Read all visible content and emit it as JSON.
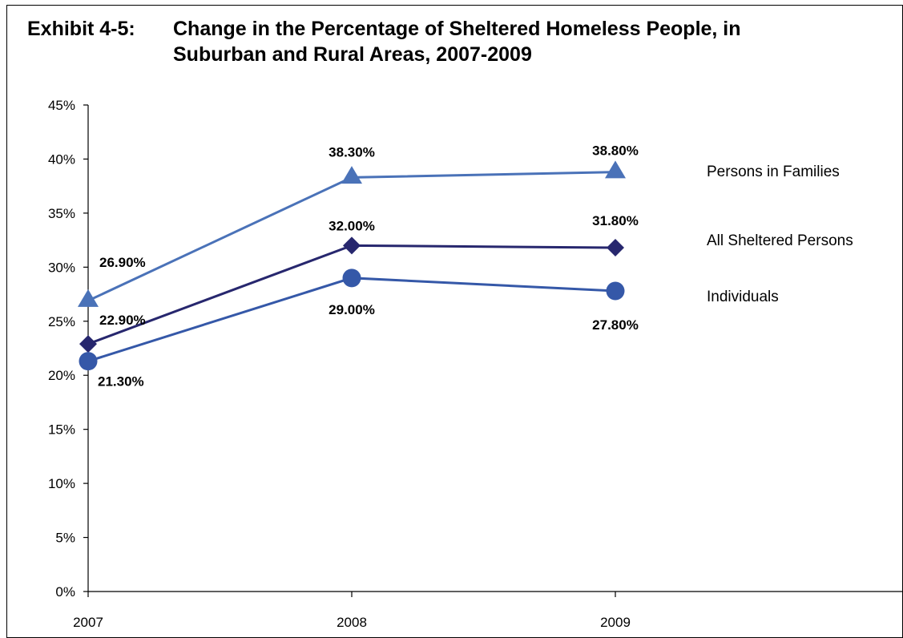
{
  "exhibit_number": "Exhibit 4-5:",
  "title_line1": "Change in the Percentage of Sheltered Homeless People, in",
  "title_line2": "Suburban and Rural Areas, 2007-2009",
  "chart_data": {
    "type": "line",
    "title": "Change in the Percentage of Sheltered Homeless People, in Suburban and Rural Areas, 2007-2009",
    "categories": [
      "2007",
      "2008",
      "2009"
    ],
    "ylim": [
      0,
      45
    ],
    "yticks": [
      0,
      5,
      10,
      15,
      20,
      25,
      30,
      35,
      40,
      45
    ],
    "ytick_labels": [
      "0%",
      "5%",
      "10%",
      "15%",
      "20%",
      "25%",
      "30%",
      "35%",
      "40%",
      "45%"
    ],
    "grid": false,
    "legend_placement": "right (labels next to line ends)",
    "series": [
      {
        "name": "Persons in Families",
        "values": [
          26.9,
          38.3,
          38.8
        ],
        "labels": [
          "26.90%",
          "38.30%",
          "38.80%"
        ],
        "marker": "triangle",
        "color": "#4A72B8"
      },
      {
        "name": "All Sheltered Persons",
        "values": [
          22.9,
          32.0,
          31.8
        ],
        "labels": [
          "22.90%",
          "32.00%",
          "31.80%"
        ],
        "marker": "diamond",
        "color": "#27276E"
      },
      {
        "name": "Individuals",
        "values": [
          21.3,
          29.0,
          27.8
        ],
        "labels": [
          "21.30%",
          "29.00%",
          "27.80%"
        ],
        "marker": "circle",
        "color": "#3558A8"
      }
    ]
  }
}
